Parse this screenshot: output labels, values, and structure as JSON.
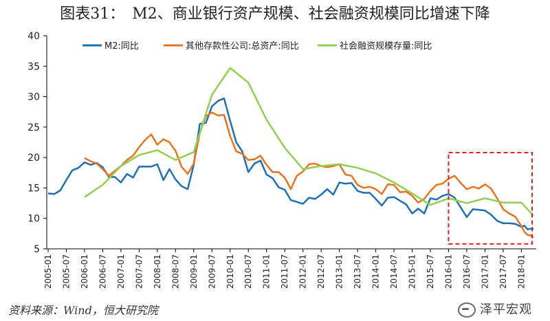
{
  "title": "图表31：　M2、商业银行资产规模、社会融资规模同比增速下降",
  "source": "资料来源：Wind，恒大研究院",
  "watermark": "泽平宏观",
  "colors": {
    "m2": "#1f6fb5",
    "other_deposit": "#e8731f",
    "tsf": "#92cf50",
    "highlight_box": "#e02020",
    "axis": "#000000"
  },
  "chart_data": {
    "type": "line",
    "title": "图表31：　M2、商业银行资产规模、社会融资规模同比增速下降",
    "xlabel": "",
    "ylabel": "",
    "ylim": [
      5,
      40
    ],
    "yticks": [
      5,
      10,
      15,
      20,
      25,
      30,
      35,
      40
    ],
    "xticks": [
      "2005-01",
      "2005-07",
      "2006-01",
      "2006-07",
      "2007-01",
      "2007-07",
      "2008-01",
      "2008-07",
      "2009-01",
      "2009-07",
      "2010-01",
      "2010-07",
      "2011-01",
      "2011-07",
      "2012-01",
      "2012-07",
      "2013-01",
      "2013-07",
      "2014-01",
      "2014-07",
      "2015-01",
      "2015-07",
      "2016-01",
      "2016-07",
      "2017-01",
      "2017-07",
      "2018-01"
    ],
    "xlim": [
      "2005-01",
      "2018-05"
    ],
    "legend_position": "top",
    "grid": false,
    "highlight_region": {
      "x": [
        "2016-01",
        "2018-05"
      ],
      "y": [
        5.8,
        20.8
      ],
      "style": "dashed"
    },
    "series": [
      {
        "name": "M2:同比",
        "color_key": "m2",
        "points": [
          [
            "2005-01",
            14.1
          ],
          [
            "2005-03",
            14.0
          ],
          [
            "2005-05",
            14.6
          ],
          [
            "2005-07",
            16.3
          ],
          [
            "2005-09",
            17.9
          ],
          [
            "2005-11",
            18.3
          ],
          [
            "2006-01",
            19.2
          ],
          [
            "2006-03",
            18.8
          ],
          [
            "2006-05",
            19.1
          ],
          [
            "2006-07",
            18.4
          ],
          [
            "2006-09",
            16.8
          ],
          [
            "2006-11",
            16.8
          ],
          [
            "2007-01",
            15.9
          ],
          [
            "2007-03",
            17.3
          ],
          [
            "2007-05",
            16.7
          ],
          [
            "2007-07",
            18.5
          ],
          [
            "2007-09",
            18.5
          ],
          [
            "2007-11",
            18.5
          ],
          [
            "2008-01",
            18.9
          ],
          [
            "2008-03",
            16.3
          ],
          [
            "2008-05",
            18.1
          ],
          [
            "2008-07",
            16.4
          ],
          [
            "2008-09",
            15.3
          ],
          [
            "2008-11",
            14.8
          ],
          [
            "2009-01",
            18.8
          ],
          [
            "2009-03",
            25.5
          ],
          [
            "2009-05",
            25.7
          ],
          [
            "2009-07",
            28.4
          ],
          [
            "2009-09",
            29.3
          ],
          [
            "2009-11",
            29.7
          ],
          [
            "2010-01",
            26.0
          ],
          [
            "2010-03",
            22.5
          ],
          [
            "2010-05",
            21.0
          ],
          [
            "2010-07",
            17.6
          ],
          [
            "2010-09",
            19.0
          ],
          [
            "2010-11",
            19.5
          ],
          [
            "2011-01",
            17.2
          ],
          [
            "2011-03",
            16.6
          ],
          [
            "2011-05",
            15.1
          ],
          [
            "2011-07",
            14.7
          ],
          [
            "2011-09",
            13.0
          ],
          [
            "2011-11",
            12.7
          ],
          [
            "2012-01",
            12.4
          ],
          [
            "2012-03",
            13.4
          ],
          [
            "2012-05",
            13.2
          ],
          [
            "2012-07",
            13.9
          ],
          [
            "2012-09",
            14.8
          ],
          [
            "2012-11",
            13.9
          ],
          [
            "2013-01",
            15.9
          ],
          [
            "2013-03",
            15.7
          ],
          [
            "2013-05",
            15.8
          ],
          [
            "2013-07",
            14.5
          ],
          [
            "2013-09",
            14.2
          ],
          [
            "2013-11",
            14.2
          ],
          [
            "2014-01",
            13.2
          ],
          [
            "2014-03",
            12.1
          ],
          [
            "2014-05",
            13.4
          ],
          [
            "2014-07",
            13.5
          ],
          [
            "2014-09",
            12.9
          ],
          [
            "2014-11",
            12.3
          ],
          [
            "2015-01",
            10.8
          ],
          [
            "2015-03",
            11.6
          ],
          [
            "2015-05",
            10.8
          ],
          [
            "2015-07",
            13.3
          ],
          [
            "2015-09",
            13.1
          ],
          [
            "2015-11",
            13.7
          ],
          [
            "2016-01",
            14.0
          ],
          [
            "2016-03",
            13.4
          ],
          [
            "2016-05",
            11.8
          ],
          [
            "2016-07",
            10.2
          ],
          [
            "2016-09",
            11.5
          ],
          [
            "2016-11",
            11.4
          ],
          [
            "2017-01",
            11.3
          ],
          [
            "2017-03",
            10.6
          ],
          [
            "2017-05",
            9.6
          ],
          [
            "2017-07",
            9.2
          ],
          [
            "2017-09",
            9.2
          ],
          [
            "2017-11",
            9.1
          ],
          [
            "2018-01",
            8.6
          ],
          [
            "2018-02",
            8.8
          ],
          [
            "2018-03",
            8.2
          ],
          [
            "2018-04",
            8.3
          ],
          [
            "2018-05",
            8.3
          ]
        ]
      },
      {
        "name": "其他存款性公司:总资产:同比",
        "color_key": "other_deposit",
        "points": [
          [
            "2006-01",
            19.9
          ],
          [
            "2006-03",
            19.4
          ],
          [
            "2006-05",
            19.0
          ],
          [
            "2006-07",
            18.1
          ],
          [
            "2006-09",
            17.0
          ],
          [
            "2006-11",
            17.8
          ],
          [
            "2007-01",
            18.6
          ],
          [
            "2007-03",
            19.6
          ],
          [
            "2007-05",
            20.3
          ],
          [
            "2007-07",
            21.7
          ],
          [
            "2007-09",
            22.9
          ],
          [
            "2007-11",
            23.8
          ],
          [
            "2008-01",
            22.1
          ],
          [
            "2008-03",
            23.0
          ],
          [
            "2008-05",
            22.5
          ],
          [
            "2008-07",
            21.1
          ],
          [
            "2008-09",
            18.5
          ],
          [
            "2008-11",
            17.3
          ],
          [
            "2009-01",
            19.0
          ],
          [
            "2009-03",
            24.0
          ],
          [
            "2009-05",
            26.8
          ],
          [
            "2009-07",
            27.4
          ],
          [
            "2009-09",
            26.9
          ],
          [
            "2009-11",
            27.0
          ],
          [
            "2010-01",
            23.5
          ],
          [
            "2010-03",
            21.0
          ],
          [
            "2010-05",
            20.6
          ],
          [
            "2010-07",
            19.6
          ],
          [
            "2010-09",
            19.7
          ],
          [
            "2010-11",
            20.3
          ],
          [
            "2011-01",
            18.8
          ],
          [
            "2011-03",
            17.6
          ],
          [
            "2011-05",
            17.6
          ],
          [
            "2011-07",
            16.7
          ],
          [
            "2011-09",
            14.8
          ],
          [
            "2011-11",
            17.0
          ],
          [
            "2012-01",
            17.7
          ],
          [
            "2012-03",
            18.9
          ],
          [
            "2012-05",
            19.0
          ],
          [
            "2012-07",
            18.6
          ],
          [
            "2012-09",
            18.4
          ],
          [
            "2012-11",
            18.6
          ],
          [
            "2013-01",
            18.9
          ],
          [
            "2013-03",
            17.2
          ],
          [
            "2013-05",
            17.0
          ],
          [
            "2013-07",
            15.5
          ],
          [
            "2013-09",
            15.0
          ],
          [
            "2013-11",
            15.2
          ],
          [
            "2014-01",
            14.8
          ],
          [
            "2014-03",
            14.0
          ],
          [
            "2014-05",
            15.6
          ],
          [
            "2014-07",
            15.5
          ],
          [
            "2014-09",
            14.3
          ],
          [
            "2014-11",
            14.4
          ],
          [
            "2015-01",
            13.7
          ],
          [
            "2015-03",
            12.6
          ],
          [
            "2015-05",
            13.2
          ],
          [
            "2015-07",
            14.5
          ],
          [
            "2015-09",
            15.5
          ],
          [
            "2015-11",
            15.7
          ],
          [
            "2016-01",
            16.5
          ],
          [
            "2016-03",
            17.0
          ],
          [
            "2016-05",
            15.8
          ],
          [
            "2016-07",
            14.8
          ],
          [
            "2016-09",
            15.2
          ],
          [
            "2016-11",
            14.9
          ],
          [
            "2017-01",
            15.6
          ],
          [
            "2017-03",
            14.9
          ],
          [
            "2017-05",
            13.3
          ],
          [
            "2017-07",
            11.5
          ],
          [
            "2017-09",
            10.8
          ],
          [
            "2017-11",
            10.3
          ],
          [
            "2018-01",
            8.7
          ],
          [
            "2018-02",
            7.8
          ],
          [
            "2018-03",
            7.3
          ],
          [
            "2018-04",
            7.2
          ],
          [
            "2018-05",
            6.9
          ]
        ]
      },
      {
        "name": "社会融资规模存量:同比",
        "color_key": "tsf",
        "points": [
          [
            "2006-01",
            13.5
          ],
          [
            "2006-07",
            15.5
          ],
          [
            "2007-01",
            18.6
          ],
          [
            "2007-07",
            20.4
          ],
          [
            "2008-01",
            21.2
          ],
          [
            "2008-07",
            19.6
          ],
          [
            "2009-01",
            20.9
          ],
          [
            "2009-07",
            30.3
          ],
          [
            "2010-01",
            34.7
          ],
          [
            "2010-07",
            32.3
          ],
          [
            "2011-01",
            26.2
          ],
          [
            "2011-07",
            21.6
          ],
          [
            "2012-01",
            18.1
          ],
          [
            "2012-07",
            18.6
          ],
          [
            "2013-01",
            18.9
          ],
          [
            "2013-07",
            18.3
          ],
          [
            "2014-01",
            17.4
          ],
          [
            "2014-07",
            15.9
          ],
          [
            "2015-01",
            14.1
          ],
          [
            "2015-07",
            12.2
          ],
          [
            "2016-01",
            13.3
          ],
          [
            "2016-07",
            12.5
          ],
          [
            "2017-01",
            13.3
          ],
          [
            "2017-07",
            12.6
          ],
          [
            "2018-01",
            12.6
          ],
          [
            "2018-03",
            11.5
          ],
          [
            "2018-05",
            10.5
          ]
        ]
      }
    ]
  }
}
